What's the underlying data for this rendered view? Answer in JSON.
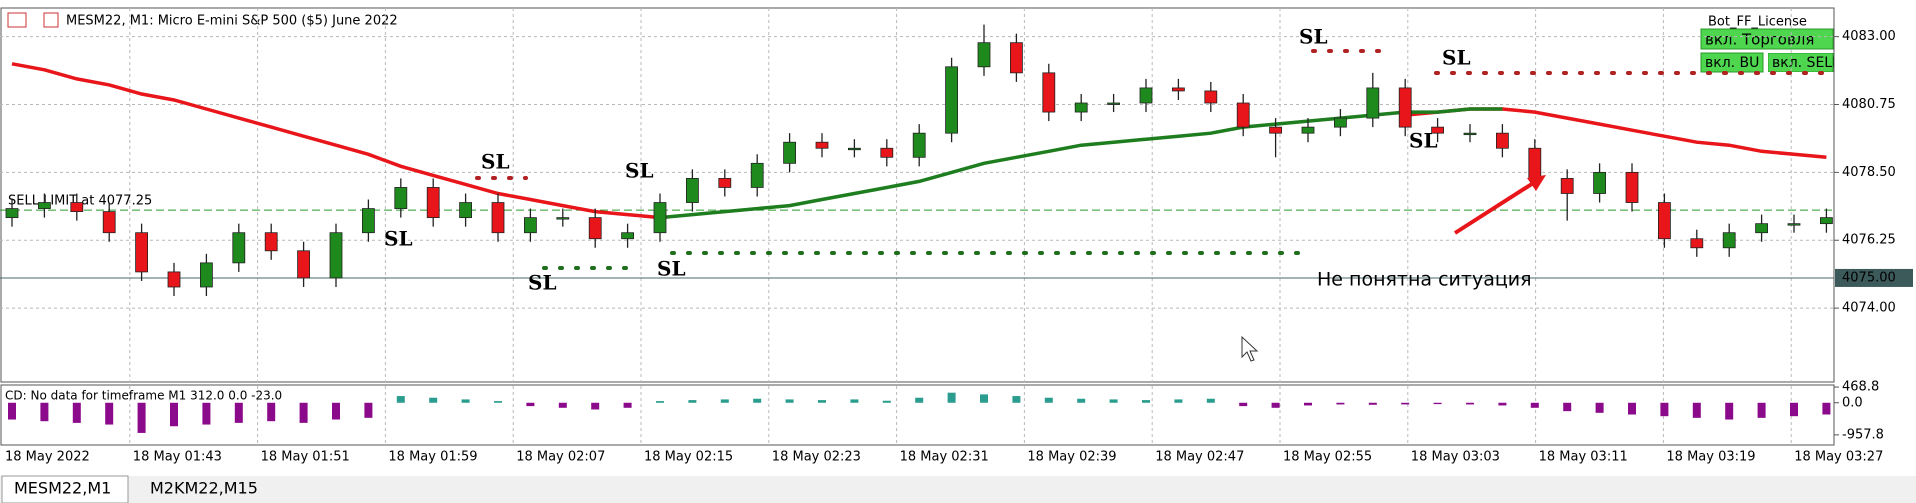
{
  "chart_data": {
    "type": "candlestick",
    "title": "MESM22, M1:  Micro E-mini S&P 500 ($5) June 2022",
    "time_labels": [
      "18 May 2022",
      "18 May 01:43",
      "18 May 01:51",
      "18 May 01:59",
      "18 May 02:07",
      "18 May 02:15",
      "18 May 02:23",
      "18 May 02:31",
      "18 May 02:39",
      "18 May 02:47",
      "18 May 02:55",
      "18 May 03:03",
      "18 May 03:11",
      "18 May 03:19",
      "18 May 03:27"
    ],
    "candles": {
      "open": [
        4077.0,
        4077.3,
        4077.5,
        4077.2,
        4076.5,
        4075.2,
        4074.7,
        4075.5,
        4076.5,
        4075.9,
        4075.0,
        4076.5,
        4077.3,
        4078.0,
        4077.0,
        4077.5,
        4076.5,
        4077.0,
        4077.0,
        4076.3,
        4076.5,
        4077.5,
        4078.3,
        4078.0,
        4078.8,
        4079.5,
        4079.3,
        4079.3,
        4079.0,
        4079.8,
        4082.0,
        4082.8,
        4081.8,
        4080.5,
        4080.8,
        4080.8,
        4081.3,
        4081.2,
        4080.8,
        4080.0,
        4079.8,
        4080.0,
        4080.3,
        4081.3,
        4080.0,
        4079.8,
        4079.8,
        4079.3,
        4078.3,
        4077.8,
        4078.5,
        4077.5,
        4076.3,
        4076.0,
        4076.5,
        4076.8,
        4076.8
      ],
      "high": [
        4077.6,
        4077.8,
        4077.8,
        4077.5,
        4076.8,
        4075.5,
        4075.8,
        4076.8,
        4076.8,
        4076.2,
        4076.8,
        4077.6,
        4078.3,
        4078.3,
        4077.8,
        4077.8,
        4077.3,
        4077.3,
        4077.3,
        4076.8,
        4077.8,
        4078.6,
        4078.6,
        4079.1,
        4079.8,
        4079.8,
        4079.6,
        4079.6,
        4080.1,
        4082.3,
        4083.4,
        4083.1,
        4082.1,
        4081.1,
        4081.1,
        4081.6,
        4081.6,
        4081.5,
        4081.1,
        4080.3,
        4080.3,
        4080.6,
        4081.8,
        4081.6,
        4080.3,
        4080.1,
        4080.1,
        4079.6,
        4078.6,
        4078.8,
        4078.8,
        4077.8,
        4076.6,
        4076.8,
        4077.1,
        4077.1,
        4077.3
      ],
      "low": [
        4076.7,
        4077.0,
        4076.9,
        4076.2,
        4074.9,
        4074.4,
        4074.4,
        4075.2,
        4075.6,
        4074.7,
        4074.7,
        4076.2,
        4077.0,
        4076.7,
        4076.7,
        4076.2,
        4076.2,
        4076.7,
        4076.0,
        4076.0,
        4076.2,
        4077.2,
        4077.7,
        4077.7,
        4078.5,
        4079.0,
        4079.0,
        4078.7,
        4078.7,
        4079.5,
        4081.7,
        4081.5,
        4080.2,
        4080.2,
        4080.5,
        4080.5,
        4080.9,
        4080.5,
        4079.7,
        4079.0,
        4079.5,
        4079.7,
        4080.0,
        4079.7,
        4079.5,
        4079.5,
        4079.0,
        4078.0,
        4076.9,
        4077.5,
        4077.2,
        4076.0,
        4075.7,
        4075.7,
        4076.2,
        4076.5,
        4076.5
      ],
      "close": [
        4077.3,
        4077.5,
        4077.2,
        4076.5,
        4075.2,
        4074.7,
        4075.5,
        4076.5,
        4075.9,
        4075.0,
        4076.5,
        4077.3,
        4078.0,
        4077.0,
        4077.5,
        4076.5,
        4077.0,
        4077.0,
        4076.3,
        4076.5,
        4077.5,
        4078.3,
        4078.0,
        4078.8,
        4079.5,
        4079.3,
        4079.3,
        4079.0,
        4079.8,
        4082.0,
        4082.8,
        4081.8,
        4080.5,
        4080.8,
        4080.8,
        4081.3,
        4081.2,
        4080.8,
        4080.0,
        4079.8,
        4080.0,
        4080.3,
        4081.3,
        4080.0,
        4079.8,
        4079.8,
        4079.3,
        4078.3,
        4077.8,
        4078.5,
        4077.5,
        4076.3,
        4076.0,
        4076.5,
        4076.8,
        4076.8,
        4077.0
      ]
    },
    "up_color": "#1e8a1e",
    "down_color": "#e8161a",
    "moving_averages": [
      {
        "color": "#e8161a",
        "values": [
          4082.1,
          4081.9,
          4081.6,
          4081.4,
          4081.1,
          4080.9,
          4080.6,
          4080.3,
          4080.0,
          4079.7,
          4079.4,
          4079.1,
          4078.7,
          4078.4,
          4078.1,
          4077.8,
          4077.6,
          4077.4,
          4077.2,
          4077.1,
          4077.0,
          null,
          null,
          null,
          null,
          null,
          null,
          null,
          null,
          null,
          null,
          null,
          null,
          null,
          null,
          null,
          null,
          null,
          null,
          null,
          null,
          null,
          null,
          4080.4,
          4080.5,
          4080.6,
          4080.6,
          4080.5,
          4080.3,
          4080.1,
          4079.9,
          4079.7,
          4079.5,
          4079.4,
          4079.2,
          4079.1,
          4079.0
        ]
      },
      {
        "color": "#1e7d1e",
        "values": [
          null,
          null,
          null,
          null,
          null,
          null,
          null,
          null,
          null,
          null,
          null,
          null,
          null,
          null,
          null,
          null,
          null,
          null,
          null,
          null,
          4077.0,
          4077.1,
          4077.2,
          4077.3,
          4077.4,
          4077.6,
          4077.8,
          4078.0,
          4078.2,
          4078.5,
          4078.8,
          4079.0,
          4079.2,
          4079.4,
          4079.5,
          4079.6,
          4079.7,
          4079.8,
          4080.0,
          4080.1,
          4080.2,
          4080.3,
          4080.4,
          4080.5,
          4080.5,
          4080.6,
          4080.6,
          null,
          null,
          null,
          null,
          null,
          null,
          null,
          null,
          null,
          null
        ]
      }
    ],
    "ylim": [
      4071.55,
      4083.95
    ],
    "yticks": [
      {
        "value": 4083,
        "label": "4083.00"
      },
      {
        "value": 4080.75,
        "label": "4080.75"
      },
      {
        "value": 4078.5,
        "label": "4078.50"
      },
      {
        "value": 4076.25,
        "label": "4076.25"
      },
      {
        "value": 4074,
        "label": "4074.00"
      }
    ],
    "current_price": {
      "value": 4075,
      "label": "4075.00"
    },
    "sell_limit": {
      "value": 4077.25,
      "label": "SELL LIMIT at 4077.25"
    },
    "grid": true,
    "indicator": {
      "label": "CD: No data for timeframe M1 312.0 0.0 -23.0",
      "values": [
        -500,
        -550,
        -600,
        -650,
        -900,
        -700,
        -650,
        -600,
        -550,
        -600,
        -500,
        -450,
        200,
        150,
        100,
        50,
        -100,
        -150,
        -200,
        -150,
        50,
        80,
        100,
        120,
        100,
        80,
        100,
        60,
        150,
        300,
        250,
        200,
        150,
        120,
        100,
        80,
        100,
        120,
        -100,
        -150,
        -80,
        -50,
        -60,
        -50,
        -40,
        -50,
        -80,
        -150,
        -250,
        -300,
        -350,
        -400,
        -450,
        -500,
        -450,
        -400,
        -350
      ],
      "ylim": [
        -1260,
        530
      ],
      "yticks": [
        468.8,
        {
          "value": 0,
          "label": "0.0"
        },
        -957.8
      ],
      "up_color": "#2a9d8f",
      "down_color": "#8b0a8b"
    }
  },
  "panel": {
    "license": "Bot_FF_License",
    "buttons": [
      "вкл. Торговля",
      "вкл. BU",
      "вкл. SELL"
    ]
  },
  "annotations": {
    "sl_labels": [
      "SL",
      "SL",
      "SL",
      "SL",
      "SL",
      "SL",
      "SL",
      "SL"
    ],
    "note": "Не понятна ситуация"
  },
  "tabs": [
    "MESM22,M1",
    "M2KM22,M15"
  ]
}
